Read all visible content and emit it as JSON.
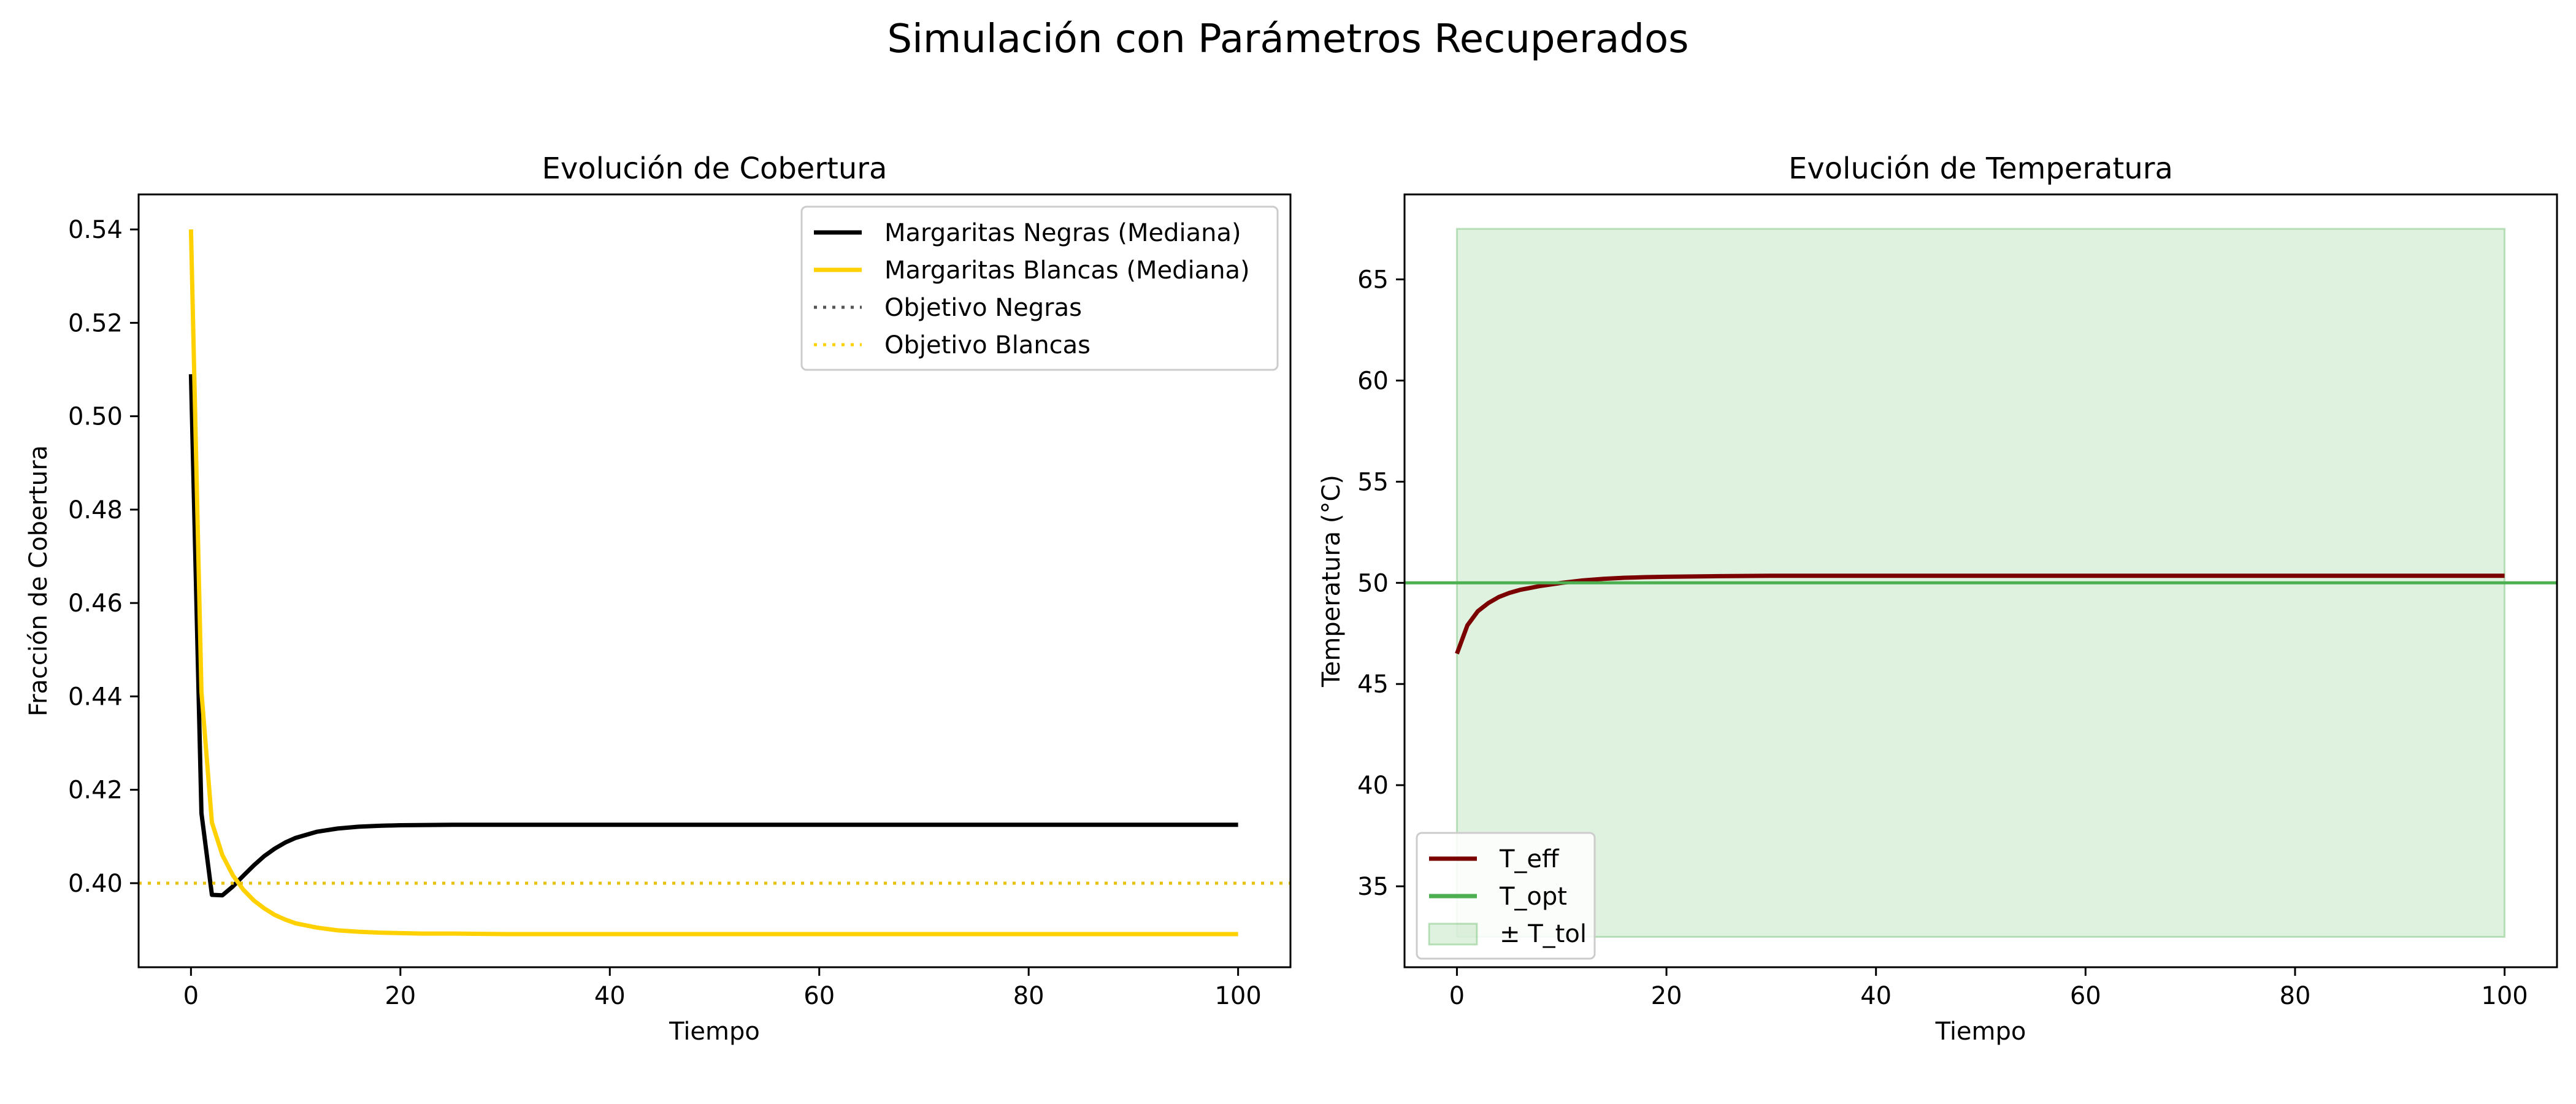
{
  "figure": {
    "title": "Simulación con Parámetros Recuperados"
  },
  "chart_data": [
    {
      "type": "line",
      "title": "Evolución de Cobertura",
      "xlabel": "Tiempo",
      "ylabel": "Fracción de Cobertura",
      "xlim": [
        -5,
        105
      ],
      "ylim": [
        0.382,
        0.5475
      ],
      "xticks": [
        0,
        20,
        40,
        60,
        80,
        100
      ],
      "xtick_labels": [
        "0",
        "20",
        "40",
        "60",
        "80",
        "100"
      ],
      "yticks": [
        0.4,
        0.42,
        0.44,
        0.46,
        0.48,
        0.5,
        0.52,
        0.54
      ],
      "ytick_labels": [
        "0.40",
        "0.42",
        "0.44",
        "0.46",
        "0.48",
        "0.50",
        "0.52",
        "0.54"
      ],
      "grid": false,
      "legend_position": "top-right",
      "series": [
        {
          "name": "Margaritas Negras (Mediana)",
          "color": "#000000",
          "style": "solid",
          "x": [
            0,
            1,
            2,
            3,
            4,
            5,
            6,
            7,
            8,
            9,
            10,
            12,
            14,
            16,
            18,
            20,
            25,
            30,
            40,
            50,
            60,
            70,
            80,
            90,
            100
          ],
          "y": [
            0.509,
            0.415,
            0.3975,
            0.3974,
            0.3993,
            0.4016,
            0.4038,
            0.4058,
            0.4074,
            0.4087,
            0.4097,
            0.411,
            0.4117,
            0.4121,
            0.4123,
            0.4124,
            0.4125,
            0.4125,
            0.4125,
            0.4125,
            0.4125,
            0.4125,
            0.4125,
            0.4125,
            0.4125
          ]
        },
        {
          "name": "Margaritas Blancas (Mediana)",
          "color": "#FFD100",
          "style": "solid",
          "x": [
            0,
            1,
            2,
            3,
            4,
            5,
            6,
            7,
            8,
            9,
            10,
            12,
            14,
            16,
            18,
            20,
            22,
            25,
            30,
            35,
            40,
            50,
            60,
            70,
            80,
            90,
            100
          ],
          "y": [
            0.54,
            0.441,
            0.413,
            0.406,
            0.4017,
            0.3986,
            0.3963,
            0.3946,
            0.3932,
            0.3922,
            0.3914,
            0.3905,
            0.3899,
            0.3896,
            0.3894,
            0.3893,
            0.3892,
            0.3892,
            0.3891,
            0.3891,
            0.3891,
            0.3891,
            0.3891,
            0.3891,
            0.3891,
            0.3891,
            0.3891
          ]
        },
        {
          "name": "Objetivo Negras",
          "color": "#555555",
          "style": "dotted",
          "hline": 0.4
        },
        {
          "name": "Objetivo Blancas",
          "color": "#FFD100",
          "style": "dotted",
          "hline": 0.4
        }
      ]
    },
    {
      "type": "line",
      "title": "Evolución de Temperatura",
      "xlabel": "Tiempo",
      "ylabel": "Temperatura (°C)",
      "xlim": [
        -5,
        105
      ],
      "ylim": [
        31.0,
        69.2
      ],
      "xticks": [
        0,
        20,
        40,
        60,
        80,
        100
      ],
      "xtick_labels": [
        "0",
        "20",
        "40",
        "60",
        "80",
        "100"
      ],
      "yticks": [
        35,
        40,
        45,
        50,
        55,
        60,
        65
      ],
      "ytick_labels": [
        "35",
        "40",
        "45",
        "50",
        "55",
        "60",
        "65"
      ],
      "grid": false,
      "legend_position": "bottom-left",
      "series": [
        {
          "name": "T_eff",
          "color": "#7B0000",
          "style": "solid",
          "x": [
            0,
            1,
            2,
            3,
            4,
            5,
            6,
            7,
            8,
            10,
            12,
            14,
            16,
            18,
            20,
            25,
            30,
            40,
            50,
            60,
            70,
            80,
            90,
            100
          ],
          "y": [
            46.5,
            47.9,
            48.6,
            49.0,
            49.3,
            49.5,
            49.65,
            49.75,
            49.85,
            50.0,
            50.12,
            50.2,
            50.25,
            50.28,
            50.3,
            50.33,
            50.35,
            50.35,
            50.35,
            50.35,
            50.35,
            50.35,
            50.35,
            50.35
          ]
        },
        {
          "name": "T_opt",
          "color": "#4CAF50",
          "style": "solid",
          "hline": 50
        },
        {
          "name": "± T_tol",
          "color": "#4CAF50",
          "style": "band",
          "x_range": [
            0,
            100
          ],
          "y_range": [
            32.5,
            67.5
          ]
        }
      ]
    }
  ]
}
